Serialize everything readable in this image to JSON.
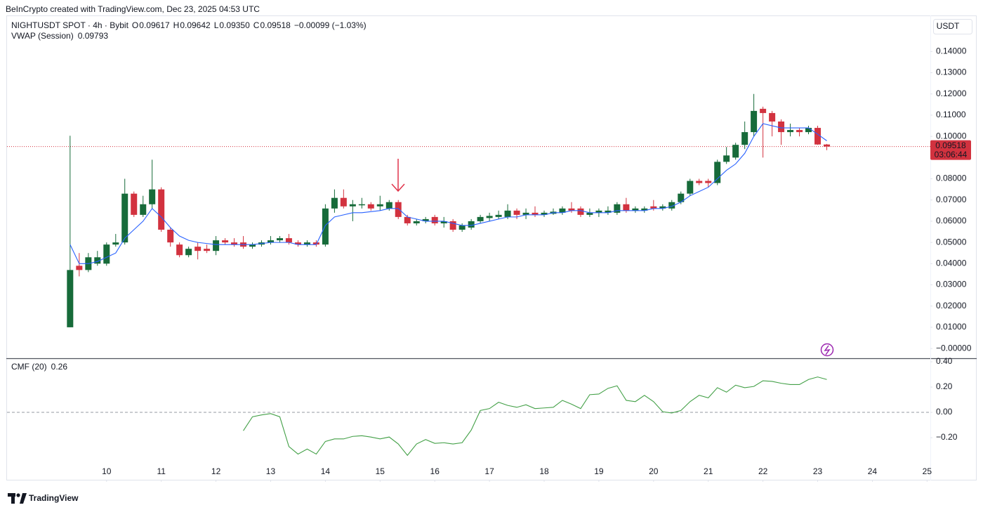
{
  "header": {
    "attribution": "BeInCrypto created with TradingView.com, Dec 23, 2025 04:53 UTC",
    "logo": "TradingView"
  },
  "chart_data": [
    {
      "type": "candlestick",
      "title": "NIGHTUSDT SPOT · 4h · Bybit",
      "currency": "USDT",
      "ohlc_legend": [
        {
          "label": "O",
          "text": "0.09617"
        },
        {
          "label": "H",
          "text": "0.09642"
        },
        {
          "label": "L",
          "text": "0.09350"
        },
        {
          "label": "C",
          "text": "0.09518"
        }
      ],
      "change": "−0.00099 (−1.03%)",
      "countdown": "03:06:44",
      "up_color": "#176b3a",
      "down_color": "#d2323f",
      "x": [
        9.333,
        9.5,
        9.667,
        9.833,
        10,
        10.167,
        10.333,
        10.5,
        10.667,
        10.833,
        11,
        11.167,
        11.333,
        11.5,
        11.667,
        11.833,
        12,
        12.167,
        12.333,
        12.5,
        12.667,
        12.833,
        13,
        13.167,
        13.333,
        13.5,
        13.667,
        13.833,
        14,
        14.167,
        14.333,
        14.5,
        14.667,
        14.833,
        15,
        15.167,
        15.333,
        15.5,
        15.667,
        15.833,
        16,
        16.167,
        16.333,
        16.5,
        16.667,
        16.833,
        17,
        17.167,
        17.333,
        17.5,
        17.667,
        17.833,
        18,
        18.167,
        18.333,
        18.5,
        18.667,
        18.833,
        19,
        19.167,
        19.333,
        19.5,
        19.667,
        19.833,
        20,
        20.167,
        20.333,
        20.5,
        20.667,
        20.833,
        21,
        21.167,
        21.333,
        21.5,
        21.667,
        21.833,
        22,
        22.167,
        22.333,
        22.5,
        22.667,
        22.833,
        23,
        23.167
      ],
      "open": [
        0.01,
        0.039,
        0.037,
        0.04,
        0.04,
        0.049,
        0.05,
        0.073,
        0.063,
        0.068,
        0.075,
        0.056,
        0.049,
        0.044,
        0.048,
        0.047,
        0.046,
        0.051,
        0.05,
        0.05,
        0.048,
        0.049,
        0.05,
        0.051,
        0.052,
        0.05,
        0.049,
        0.05,
        0.049,
        0.066,
        0.071,
        0.067,
        0.0675,
        0.068,
        0.067,
        0.066,
        0.069,
        0.062,
        0.059,
        0.06,
        0.062,
        0.059,
        0.06,
        0.056,
        0.057,
        0.06,
        0.0615,
        0.062,
        0.062,
        0.065,
        0.063,
        0.064,
        0.063,
        0.0635,
        0.064,
        0.066,
        0.066,
        0.063,
        0.064,
        0.064,
        0.064,
        0.068,
        0.065,
        0.065,
        0.067,
        0.066,
        0.066,
        0.069,
        0.073,
        0.079,
        0.079,
        0.078,
        0.088,
        0.09,
        0.096,
        0.102,
        0.113,
        0.111,
        0.107,
        0.102,
        0.103,
        0.102,
        0.104,
        0.09617
      ],
      "high": [
        0.1003,
        0.045,
        0.045,
        0.046,
        0.05,
        0.054,
        0.08,
        0.074,
        0.072,
        0.089,
        0.076,
        0.057,
        0.05,
        0.048,
        0.05,
        0.049,
        0.053,
        0.052,
        0.052,
        0.053,
        0.05,
        0.051,
        0.053,
        0.053,
        0.054,
        0.051,
        0.051,
        0.051,
        0.068,
        0.075,
        0.075,
        0.07,
        0.071,
        0.069,
        0.072,
        0.07,
        0.07,
        0.063,
        0.061,
        0.062,
        0.063,
        0.062,
        0.061,
        0.059,
        0.061,
        0.063,
        0.064,
        0.065,
        0.068,
        0.066,
        0.066,
        0.067,
        0.065,
        0.066,
        0.067,
        0.069,
        0.067,
        0.066,
        0.066,
        0.067,
        0.069,
        0.071,
        0.067,
        0.067,
        0.07,
        0.068,
        0.07,
        0.074,
        0.08,
        0.08,
        0.08,
        0.089,
        0.095,
        0.097,
        0.107,
        0.12,
        0.114,
        0.112,
        0.108,
        0.106,
        0.104,
        0.105,
        0.105,
        0.09642
      ],
      "low": [
        0.01,
        0.034,
        0.036,
        0.039,
        0.039,
        0.048,
        0.049,
        0.062,
        0.062,
        0.066,
        0.055,
        0.048,
        0.043,
        0.043,
        0.042,
        0.045,
        0.044,
        0.049,
        0.048,
        0.047,
        0.047,
        0.048,
        0.049,
        0.05,
        0.049,
        0.048,
        0.048,
        0.048,
        0.048,
        0.064,
        0.066,
        0.06,
        0.066,
        0.065,
        0.065,
        0.065,
        0.061,
        0.058,
        0.058,
        0.059,
        0.058,
        0.057,
        0.055,
        0.055,
        0.056,
        0.059,
        0.06,
        0.061,
        0.061,
        0.061,
        0.061,
        0.062,
        0.062,
        0.063,
        0.063,
        0.064,
        0.062,
        0.062,
        0.062,
        0.063,
        0.063,
        0.064,
        0.064,
        0.064,
        0.065,
        0.065,
        0.065,
        0.068,
        0.072,
        0.077,
        0.076,
        0.077,
        0.087,
        0.089,
        0.094,
        0.1,
        0.09,
        0.1,
        0.096,
        0.1,
        0.1,
        0.101,
        0.096,
        0.0935
      ],
      "close": [
        0.037,
        0.037,
        0.043,
        0.043,
        0.049,
        0.05,
        0.073,
        0.063,
        0.068,
        0.075,
        0.056,
        0.05,
        0.044,
        0.047,
        0.046,
        0.046,
        0.051,
        0.05,
        0.049,
        0.048,
        0.049,
        0.05,
        0.051,
        0.052,
        0.05,
        0.049,
        0.05,
        0.049,
        0.066,
        0.071,
        0.067,
        0.068,
        0.068,
        0.066,
        0.068,
        0.069,
        0.062,
        0.059,
        0.06,
        0.061,
        0.059,
        0.06,
        0.056,
        0.058,
        0.06,
        0.062,
        0.0625,
        0.063,
        0.065,
        0.063,
        0.064,
        0.063,
        0.064,
        0.0645,
        0.066,
        0.065,
        0.063,
        0.064,
        0.065,
        0.065,
        0.068,
        0.065,
        0.066,
        0.066,
        0.066,
        0.067,
        0.069,
        0.073,
        0.079,
        0.078,
        0.078,
        0.088,
        0.091,
        0.096,
        0.102,
        0.112,
        0.111,
        0.107,
        0.102,
        0.103,
        0.102,
        0.104,
        0.09617,
        0.09518
      ],
      "overlays": [
        {
          "name": "VWAP (Session)",
          "color": "#2962ff",
          "values": [
            0.049,
            0.04,
            0.04,
            0.041,
            0.043,
            0.045,
            0.052,
            0.056,
            0.06,
            0.066,
            0.062,
            0.057,
            0.053,
            0.051,
            0.05,
            0.0495,
            0.049,
            0.049,
            0.049,
            0.049,
            0.049,
            0.0495,
            0.05,
            0.05,
            0.05,
            0.049,
            0.049,
            0.049,
            0.058,
            0.062,
            0.063,
            0.064,
            0.064,
            0.0645,
            0.065,
            0.066,
            0.066,
            0.062,
            0.061,
            0.06,
            0.06,
            0.06,
            0.059,
            0.058,
            0.058,
            0.059,
            0.06,
            0.061,
            0.062,
            0.062,
            0.063,
            0.063,
            0.063,
            0.064,
            0.064,
            0.065,
            0.065,
            0.064,
            0.064,
            0.064,
            0.065,
            0.065,
            0.065,
            0.065,
            0.066,
            0.066,
            0.067,
            0.069,
            0.072,
            0.074,
            0.076,
            0.08,
            0.084,
            0.087,
            0.092,
            0.1,
            0.106,
            0.105,
            0.104,
            0.104,
            0.104,
            0.104,
            0.101,
            0.09793
          ]
        }
      ],
      "xlim": [
        8.18,
        25.06
      ],
      "xticks": [
        10,
        11,
        12,
        13,
        14,
        15,
        16,
        17,
        18,
        19,
        20,
        21,
        22,
        23,
        24,
        25
      ],
      "ylim": [
        -0.0046,
        0.157
      ],
      "yticks": [
        {
          "value": 0.14,
          "label": "0.14000"
        },
        {
          "value": 0.13,
          "label": "0.13000"
        },
        {
          "value": 0.12,
          "label": "0.12000"
        },
        {
          "value": 0.11,
          "label": "0.11000"
        },
        {
          "value": 0.1,
          "label": "0.10000"
        },
        {
          "value": 0.09,
          "label": "0.09000"
        },
        {
          "value": 0.08,
          "label": "0.08000"
        },
        {
          "value": 0.07,
          "label": "0.07000"
        },
        {
          "value": 0.06,
          "label": "0.06000"
        },
        {
          "value": 0.05,
          "label": "0.05000"
        },
        {
          "value": 0.04,
          "label": "0.04000"
        },
        {
          "value": 0.03,
          "label": "0.03000"
        },
        {
          "value": 0.02,
          "label": "0.02000"
        },
        {
          "value": 0.01,
          "label": "0.01000"
        },
        {
          "value": 0,
          "label": "−0.00000"
        }
      ],
      "grid": false
    },
    {
      "type": "line",
      "zero_line": true,
      "series": [
        {
          "name": "CMF (20)",
          "color": "#43a047",
          "values": [
            null,
            null,
            null,
            null,
            null,
            null,
            null,
            null,
            null,
            null,
            null,
            null,
            null,
            null,
            null,
            null,
            null,
            null,
            null,
            -0.145,
            -0.035,
            -0.02,
            -0.01,
            -0.035,
            -0.27,
            -0.33,
            -0.29,
            -0.33,
            -0.23,
            -0.21,
            -0.21,
            -0.19,
            -0.185,
            -0.195,
            -0.21,
            -0.195,
            -0.25,
            -0.34,
            -0.25,
            -0.215,
            -0.245,
            -0.24,
            -0.25,
            -0.24,
            -0.14,
            0.015,
            0.03,
            0.08,
            0.055,
            0.04,
            0.06,
            0.03,
            0.035,
            0.04,
            0.095,
            0.065,
            0.03,
            0.14,
            0.145,
            0.19,
            0.21,
            0.095,
            0.085,
            0.135,
            0.085,
            0.005,
            -0.005,
            0.015,
            0.085,
            0.135,
            0.115,
            0.195,
            0.16,
            0.215,
            0.195,
            0.205,
            0.25,
            0.245,
            0.23,
            0.22,
            0.22,
            0.26,
            0.28,
            0.26
          ]
        }
      ],
      "ylim": [
        -0.533,
        0.428
      ],
      "yticks": [
        {
          "value": 0.4,
          "label": "0.40"
        },
        {
          "value": 0.2,
          "label": "0.20"
        },
        {
          "value": 0,
          "label": "0.00"
        },
        {
          "value": -0.2,
          "label": "−0.20"
        }
      ],
      "grid": false
    }
  ]
}
